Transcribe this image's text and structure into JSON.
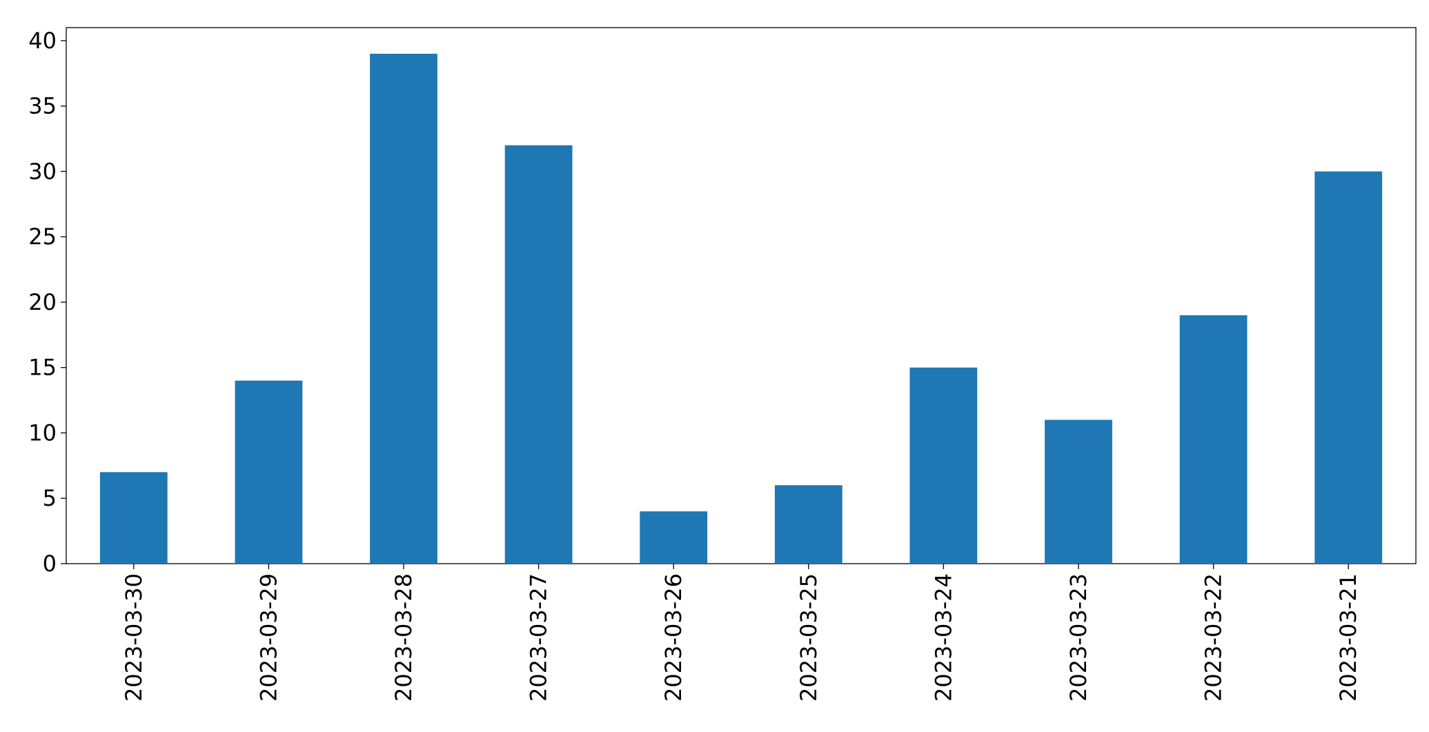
{
  "chart_data": {
    "type": "bar",
    "categories": [
      "2023-03-30",
      "2023-03-29",
      "2023-03-28",
      "2023-03-27",
      "2023-03-26",
      "2023-03-25",
      "2023-03-24",
      "2023-03-23",
      "2023-03-22",
      "2023-03-21"
    ],
    "values": [
      7,
      14,
      39,
      32,
      4,
      6,
      15,
      11,
      19,
      30
    ],
    "color": "#1f77b4",
    "ylim": [
      0,
      41
    ],
    "yticks": [
      0,
      5,
      10,
      15,
      20,
      25,
      30,
      35,
      40
    ],
    "grid": false
  }
}
